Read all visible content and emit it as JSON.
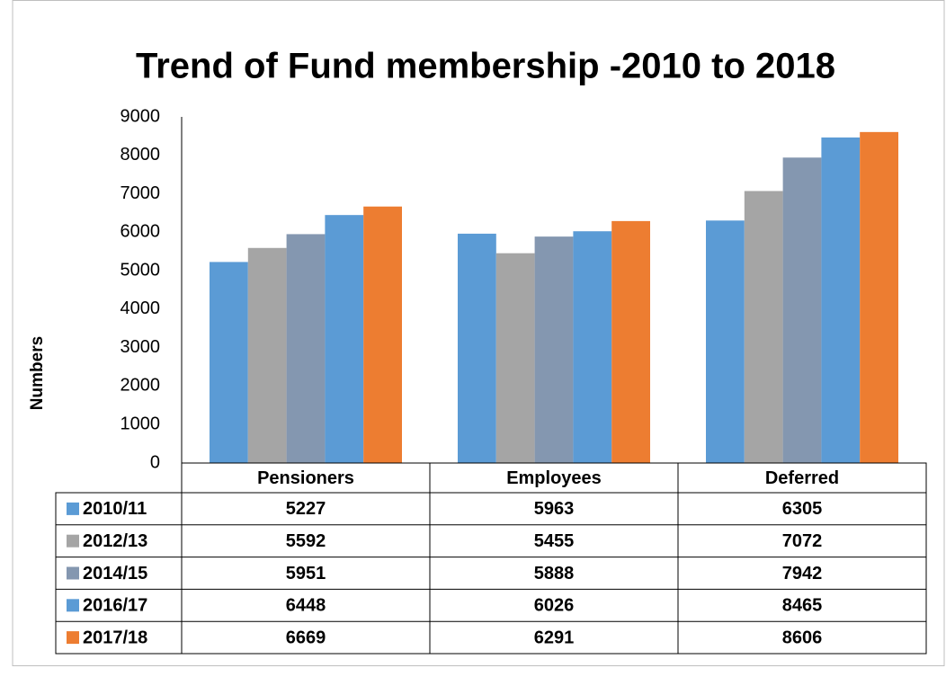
{
  "chart_data": {
    "type": "bar",
    "title": "Trend of Fund membership -2010 to 2018",
    "y_label": "Numbers",
    "categories": [
      "Pensioners",
      "Employees",
      "Deferred"
    ],
    "series": [
      {
        "name": "2010/11",
        "color": "#5b9bd5",
        "values": [
          5227,
          5963,
          6305
        ]
      },
      {
        "name": "2012/13",
        "color": "#a5a5a5",
        "values": [
          5592,
          5455,
          7072
        ]
      },
      {
        "name": "2014/15",
        "color": "#8497b0",
        "values": [
          5951,
          5888,
          7942
        ]
      },
      {
        "name": "2016/17",
        "color": "#5b9bd5",
        "values": [
          6448,
          6026,
          8465
        ]
      },
      {
        "name": "2017/18",
        "color": "#ed7d31",
        "values": [
          6669,
          6291,
          8606
        ]
      }
    ],
    "ylim": [
      0,
      9000
    ],
    "yticks": [
      0,
      1000,
      2000,
      3000,
      4000,
      5000,
      6000,
      7000,
      8000,
      9000
    ],
    "grid": false
  }
}
